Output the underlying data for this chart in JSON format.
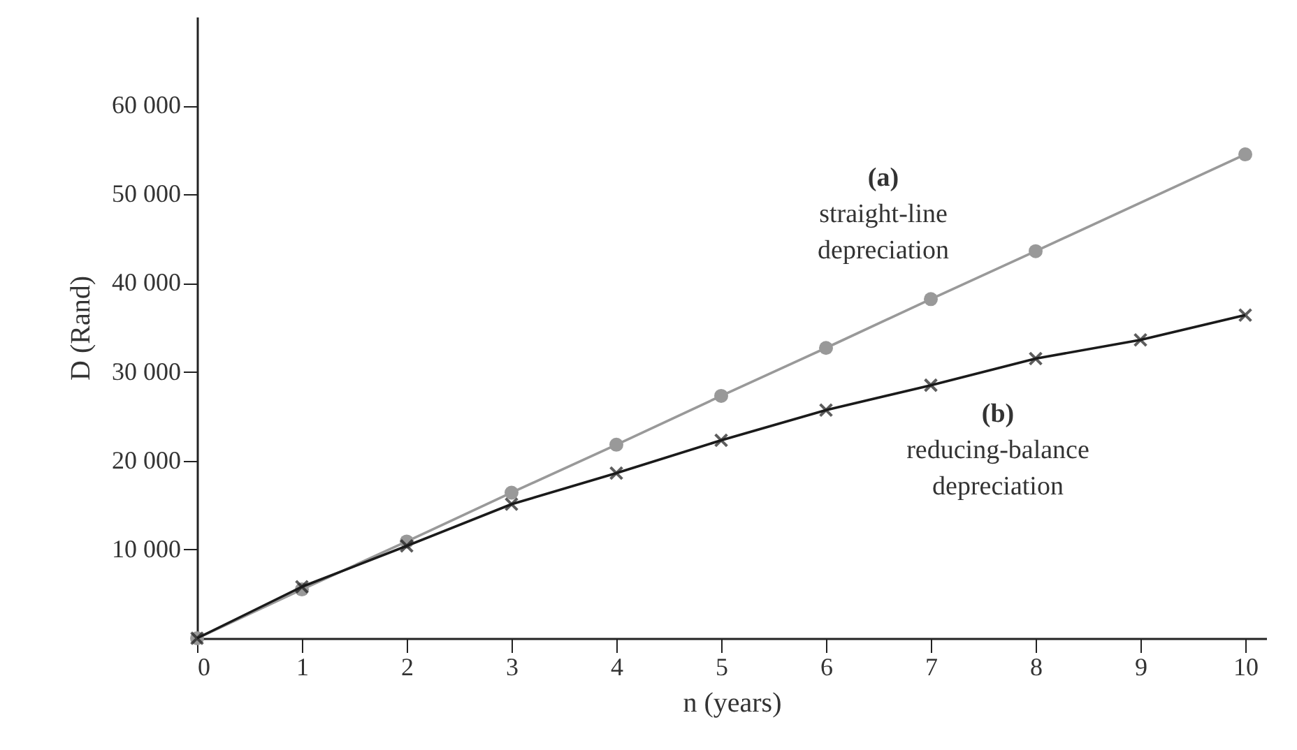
{
  "chart_data": {
    "type": "line",
    "xlabel": "n (years)",
    "ylabel": "D (Rand)",
    "xlim": [
      0,
      10.2
    ],
    "ylim": [
      0,
      70000
    ],
    "xticks": [
      0,
      1,
      2,
      3,
      4,
      5,
      6,
      7,
      8,
      9,
      10
    ],
    "yticks": [
      {
        "value": 10000,
        "label": "10 000"
      },
      {
        "value": 20000,
        "label": "20 000"
      },
      {
        "value": 30000,
        "label": "30 000"
      },
      {
        "value": 40000,
        "label": "40 000"
      },
      {
        "value": 50000,
        "label": "50 000"
      },
      {
        "value": 60000,
        "label": "60 000"
      }
    ],
    "marker": "circle",
    "series": [
      {
        "color": "#999999",
        "x": [
          0,
          1,
          2,
          3,
          4,
          5,
          6,
          7,
          8,
          10
        ],
        "values": [
          0,
          5500,
          10900,
          16400,
          21800,
          27300,
          32700,
          38200,
          43600,
          54500
        ]
      },
      {
        "color": "#1a1a1a",
        "marker": "cross",
        "x": [
          0,
          1,
          2,
          3,
          4,
          5,
          6,
          7,
          8,
          9,
          10
        ],
        "values": [
          0,
          5800,
          10400,
          15100,
          18600,
          22300,
          25700,
          28500,
          31500,
          33600,
          36400
        ]
      }
    ],
    "annotations": [
      "(a)",
      "straight-line",
      "depreciation",
      "(b)",
      "reducing-balance",
      "depreciation"
    ]
  }
}
